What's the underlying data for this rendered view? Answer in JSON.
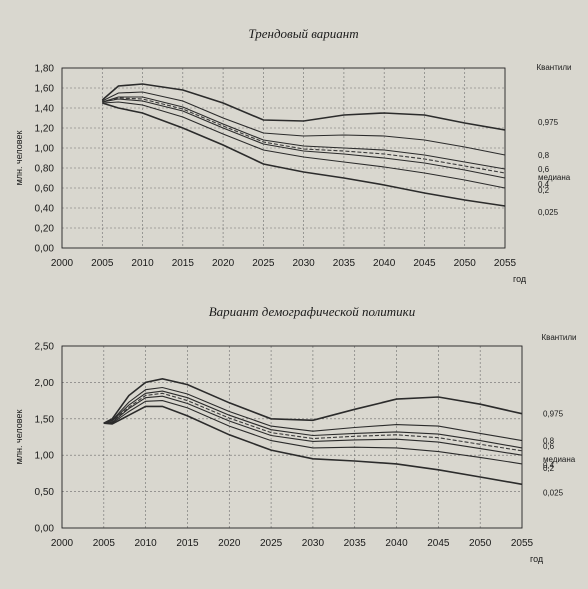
{
  "chart_data": [
    {
      "type": "line",
      "title": "Трендовый вариант",
      "ylabel": "млн. человек",
      "xlabel": "год",
      "x_ticks": [
        "2000",
        "2005",
        "2010",
        "2015",
        "2020",
        "2025",
        "2030",
        "2035",
        "2040",
        "2045",
        "2050",
        "2055"
      ],
      "y_ticks": [
        "0,00",
        "0,20",
        "0,40",
        "0,60",
        "0,80",
        "1,00",
        "1,20",
        "1,40",
        "1,60",
        "1,80"
      ],
      "xlim": [
        2000,
        2055
      ],
      "ylim": [
        0,
        1.8
      ],
      "grid": true,
      "legend_title": "Квантили",
      "x": [
        2005,
        2007,
        2010,
        2015,
        2020,
        2025,
        2030,
        2035,
        2040,
        2045,
        2050,
        2055
      ],
      "series": [
        {
          "name": "0,975",
          "style": "solid",
          "values": [
            1.48,
            1.62,
            1.64,
            1.58,
            1.45,
            1.28,
            1.27,
            1.33,
            1.35,
            1.33,
            1.25,
            1.18
          ]
        },
        {
          "name": "0,8",
          "style": "solid",
          "values": [
            1.47,
            1.55,
            1.56,
            1.47,
            1.3,
            1.15,
            1.12,
            1.13,
            1.12,
            1.08,
            1.01,
            0.93
          ]
        },
        {
          "name": "0,6",
          "style": "solid",
          "values": [
            1.46,
            1.51,
            1.51,
            1.41,
            1.24,
            1.08,
            1.02,
            1.0,
            0.98,
            0.93,
            0.86,
            0.79
          ]
        },
        {
          "name": "медиана",
          "style": "dashed",
          "values": [
            1.46,
            1.5,
            1.49,
            1.39,
            1.22,
            1.06,
            0.99,
            0.97,
            0.94,
            0.89,
            0.82,
            0.75
          ]
        },
        {
          "name": "0,4",
          "style": "solid",
          "values": [
            1.46,
            1.49,
            1.47,
            1.37,
            1.2,
            1.04,
            0.97,
            0.94,
            0.9,
            0.85,
            0.78,
            0.7
          ]
        },
        {
          "name": "0,2",
          "style": "solid",
          "values": [
            1.45,
            1.46,
            1.43,
            1.31,
            1.14,
            0.98,
            0.91,
            0.86,
            0.81,
            0.75,
            0.68,
            0.6
          ]
        },
        {
          "name": "0,025",
          "style": "solid",
          "values": [
            1.45,
            1.4,
            1.35,
            1.2,
            1.03,
            0.84,
            0.76,
            0.7,
            0.63,
            0.55,
            0.48,
            0.42
          ]
        }
      ]
    },
    {
      "type": "line",
      "title": "Вариант демографической политики",
      "ylabel": "млн. человек",
      "xlabel": "год",
      "x_ticks": [
        "2000",
        "2005",
        "2010",
        "2015",
        "2020",
        "2025",
        "2030",
        "2035",
        "2040",
        "2045",
        "2050",
        "2055"
      ],
      "y_ticks": [
        "0,00",
        "0,50",
        "1,00",
        "1,50",
        "2,00",
        "2,50"
      ],
      "xlim": [
        2000,
        2055
      ],
      "ylim": [
        0,
        2.5
      ],
      "grid": true,
      "legend_title": "Квантили",
      "x": [
        2005,
        2006,
        2008,
        2010,
        2012,
        2015,
        2020,
        2025,
        2030,
        2035,
        2040,
        2045,
        2050,
        2055
      ],
      "series": [
        {
          "name": "0,975",
          "style": "solid",
          "values": [
            1.44,
            1.5,
            1.82,
            2.0,
            2.05,
            1.97,
            1.72,
            1.5,
            1.48,
            1.63,
            1.77,
            1.8,
            1.7,
            1.57
          ]
        },
        {
          "name": "0,8",
          "style": "solid",
          "values": [
            1.44,
            1.48,
            1.73,
            1.9,
            1.93,
            1.84,
            1.6,
            1.4,
            1.33,
            1.38,
            1.42,
            1.4,
            1.3,
            1.2
          ]
        },
        {
          "name": "0,6",
          "style": "solid",
          "values": [
            1.44,
            1.47,
            1.69,
            1.85,
            1.88,
            1.79,
            1.55,
            1.35,
            1.27,
            1.3,
            1.32,
            1.29,
            1.2,
            1.1
          ]
        },
        {
          "name": "медиана",
          "style": "dashed",
          "values": [
            1.44,
            1.46,
            1.66,
            1.82,
            1.85,
            1.75,
            1.51,
            1.31,
            1.23,
            1.26,
            1.28,
            1.24,
            1.15,
            1.06
          ]
        },
        {
          "name": "0,4",
          "style": "solid",
          "values": [
            1.44,
            1.45,
            1.64,
            1.79,
            1.81,
            1.71,
            1.47,
            1.27,
            1.19,
            1.21,
            1.22,
            1.18,
            1.09,
            1.0
          ]
        },
        {
          "name": "0,2",
          "style": "solid",
          "values": [
            1.44,
            1.44,
            1.6,
            1.74,
            1.75,
            1.65,
            1.4,
            1.2,
            1.1,
            1.11,
            1.1,
            1.05,
            0.97,
            0.88
          ]
        },
        {
          "name": "0,025",
          "style": "solid",
          "values": [
            1.44,
            1.43,
            1.55,
            1.67,
            1.67,
            1.54,
            1.28,
            1.07,
            0.95,
            0.92,
            0.88,
            0.8,
            0.7,
            0.6
          ]
        }
      ]
    }
  ]
}
